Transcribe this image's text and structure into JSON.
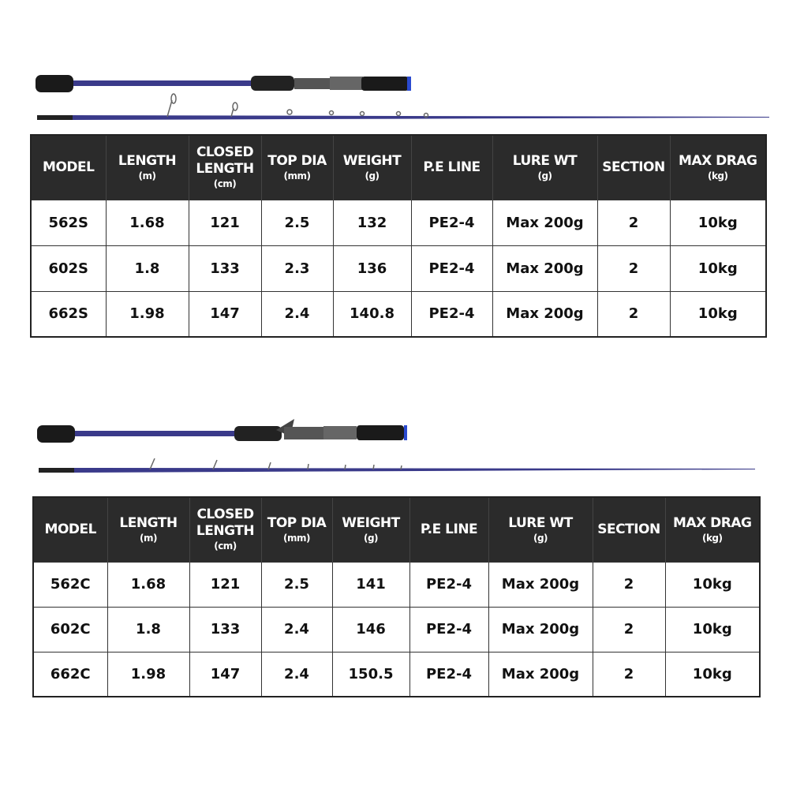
{
  "colors": {
    "header_bg": "#2b2b2b",
    "rod_blank": "#3a3a8a",
    "grip": "#1a1a1a"
  },
  "headers": [
    {
      "label": "MODEL",
      "unit": ""
    },
    {
      "label": "LENGTH",
      "unit": "(m)"
    },
    {
      "label": "CLOSED LENGTH",
      "unit": "(cm)"
    },
    {
      "label": "TOP DIA",
      "unit": "(mm)"
    },
    {
      "label": "WEIGHT",
      "unit": "(g)"
    },
    {
      "label": "P.E LINE",
      "unit": ""
    },
    {
      "label": "LURE WT",
      "unit": "(g)"
    },
    {
      "label": "SECTION",
      "unit": ""
    },
    {
      "label": "MAX DRAG",
      "unit": "(kg)"
    }
  ],
  "spinning": {
    "rows": [
      [
        "562S",
        "1.68",
        "121",
        "2.5",
        "132",
        "PE2-4",
        "Max 200g",
        "2",
        "10kg"
      ],
      [
        "602S",
        "1.8",
        "133",
        "2.3",
        "136",
        "PE2-4",
        "Max 200g",
        "2",
        "10kg"
      ],
      [
        "662S",
        "1.98",
        "147",
        "2.4",
        "140.8",
        "PE2-4",
        "Max 200g",
        "2",
        "10kg"
      ]
    ]
  },
  "casting": {
    "rows": [
      [
        "562C",
        "1.68",
        "121",
        "2.5",
        "141",
        "PE2-4",
        "Max 200g",
        "2",
        "10kg"
      ],
      [
        "602C",
        "1.8",
        "133",
        "2.4",
        "146",
        "PE2-4",
        "Max 200g",
        "2",
        "10kg"
      ],
      [
        "662C",
        "1.98",
        "147",
        "2.4",
        "150.5",
        "PE2-4",
        "Max 200g",
        "2",
        "10kg"
      ]
    ]
  }
}
